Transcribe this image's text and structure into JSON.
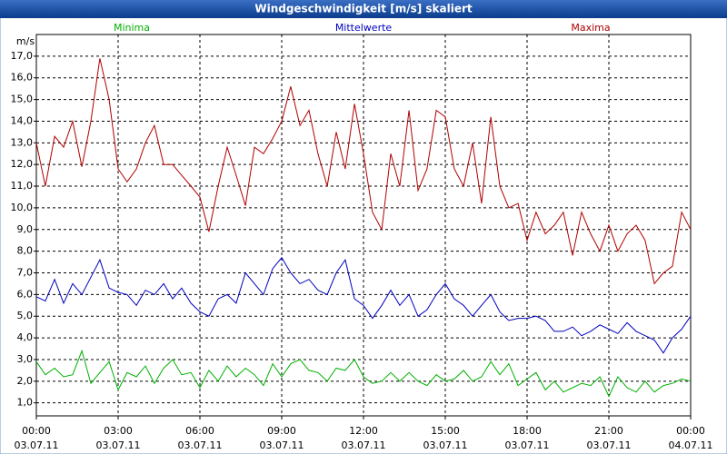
{
  "chart_data": {
    "type": "line",
    "title": "Windgeschwindigkeit [m/s] skaliert",
    "y_label": "m/s",
    "x": [
      0,
      0.33,
      0.67,
      1,
      1.33,
      1.67,
      2,
      2.33,
      2.67,
      3,
      3.33,
      3.67,
      4,
      4.33,
      4.67,
      5,
      5.33,
      5.67,
      6,
      6.33,
      6.67,
      7,
      7.33,
      7.67,
      8,
      8.33,
      8.67,
      9,
      9.33,
      9.67,
      10,
      10.33,
      10.67,
      11,
      11.33,
      11.67,
      12,
      12.33,
      12.67,
      13,
      13.33,
      13.67,
      14,
      14.33,
      14.67,
      15,
      15.33,
      15.67,
      16,
      16.33,
      16.67,
      17,
      17.33,
      17.67,
      18,
      18.33,
      18.67,
      19,
      19.33,
      19.67,
      20,
      20.33,
      20.67,
      21,
      21.33,
      21.67,
      22,
      22.33,
      22.67,
      23,
      23.33,
      23.67,
      24
    ],
    "series": [
      {
        "name": "Minima",
        "color": "#00b000",
        "values": [
          2.9,
          2.3,
          2.6,
          2.2,
          2.3,
          3.4,
          1.9,
          2.4,
          2.9,
          1.6,
          2.4,
          2.2,
          2.7,
          1.9,
          2.6,
          3.0,
          2.3,
          2.4,
          1.7,
          2.5,
          2.0,
          2.7,
          2.2,
          2.6,
          2.3,
          1.8,
          2.8,
          2.2,
          2.8,
          3.0,
          2.5,
          2.4,
          2.0,
          2.6,
          2.5,
          3.0,
          2.2,
          1.9,
          2.0,
          2.4,
          2.0,
          2.4,
          2.0,
          1.8,
          2.3,
          2.0,
          2.1,
          2.5,
          2.0,
          2.2,
          2.9,
          2.3,
          2.8,
          1.8,
          2.1,
          2.4,
          1.6,
          2.0,
          1.5,
          1.7,
          1.9,
          1.8,
          2.2,
          1.3,
          2.2,
          1.7,
          1.5,
          2.0,
          1.5,
          1.8,
          1.9,
          2.1,
          2.0
        ]
      },
      {
        "name": "Mittelwerte",
        "color": "#0000c0",
        "values": [
          5.9,
          5.7,
          6.7,
          5.6,
          6.5,
          6.0,
          6.8,
          7.6,
          6.3,
          6.1,
          6.0,
          5.5,
          6.2,
          6.0,
          6.5,
          5.8,
          6.3,
          5.6,
          5.2,
          5.0,
          5.8,
          6.0,
          5.6,
          7.0,
          6.5,
          6.0,
          7.2,
          7.7,
          7.0,
          6.5,
          6.7,
          6.2,
          6.0,
          7.0,
          7.6,
          5.8,
          5.5,
          4.9,
          5.5,
          6.2,
          5.5,
          6.0,
          5.0,
          5.3,
          6.0,
          6.5,
          5.8,
          5.5,
          5.0,
          5.5,
          6.0,
          5.2,
          4.8,
          4.9,
          4.9,
          5.0,
          4.8,
          4.3,
          4.3,
          4.5,
          4.1,
          4.3,
          4.6,
          4.4,
          4.2,
          4.7,
          4.3,
          4.1,
          3.9,
          3.3,
          4.0,
          4.4,
          5.0
        ]
      },
      {
        "name": "Maxima",
        "color": "#b00000",
        "values": [
          13.0,
          11.0,
          13.3,
          12.8,
          14.0,
          11.9,
          14.0,
          16.9,
          15.0,
          11.8,
          11.2,
          11.8,
          13.0,
          13.8,
          12.0,
          12.0,
          11.5,
          11.0,
          10.5,
          8.9,
          11.0,
          12.8,
          11.5,
          10.1,
          12.8,
          12.5,
          13.2,
          14.0,
          15.6,
          13.8,
          14.5,
          12.5,
          11.0,
          13.5,
          11.8,
          14.8,
          12.5,
          9.8,
          9.0,
          12.5,
          11.0,
          14.5,
          10.8,
          11.8,
          14.5,
          14.2,
          11.8,
          11.0,
          13.0,
          10.2,
          14.2,
          11.0,
          10.0,
          10.2,
          8.5,
          9.8,
          8.8,
          9.2,
          9.8,
          7.8,
          9.8,
          8.8,
          8.0,
          9.2,
          8.0,
          8.8,
          9.2,
          8.5,
          6.5,
          7.0,
          7.3,
          9.8,
          9.0
        ]
      }
    ],
    "xlim": [
      0,
      24
    ],
    "xticks": [
      {
        "value": 0,
        "label": "00:00",
        "date": "03.07.11"
      },
      {
        "value": 3,
        "label": "03:00",
        "date": "03.07.11"
      },
      {
        "value": 6,
        "label": "06:00",
        "date": "03.07.11"
      },
      {
        "value": 9,
        "label": "09:00",
        "date": "03.07.11"
      },
      {
        "value": 12,
        "label": "12:00",
        "date": "03.07.11"
      },
      {
        "value": 15,
        "label": "15:00",
        "date": "03.07.11"
      },
      {
        "value": 18,
        "label": "18:00",
        "date": "03.07.11"
      },
      {
        "value": 21,
        "label": "21:00",
        "date": "03.07.11"
      },
      {
        "value": 24,
        "label": "00:00",
        "date": "04.07.11"
      }
    ],
    "ylim": [
      0.4,
      18
    ],
    "yticks": [
      {
        "value": 1,
        "label": "1,0"
      },
      {
        "value": 2,
        "label": "2,0"
      },
      {
        "value": 3,
        "label": "3,0"
      },
      {
        "value": 4,
        "label": "4,0"
      },
      {
        "value": 5,
        "label": "5,0"
      },
      {
        "value": 6,
        "label": "6,0"
      },
      {
        "value": 7,
        "label": "7,0"
      },
      {
        "value": 8,
        "label": "8,0"
      },
      {
        "value": 9,
        "label": "9,0"
      },
      {
        "value": 10,
        "label": "10,0"
      },
      {
        "value": 11,
        "label": "11,0"
      },
      {
        "value": 12,
        "label": "12,0"
      },
      {
        "value": 13,
        "label": "13,0"
      },
      {
        "value": 14,
        "label": "14,0"
      },
      {
        "value": 15,
        "label": "15,0"
      },
      {
        "value": 16,
        "label": "16,0"
      },
      {
        "value": 17,
        "label": "17,0"
      }
    ],
    "grid": true
  }
}
